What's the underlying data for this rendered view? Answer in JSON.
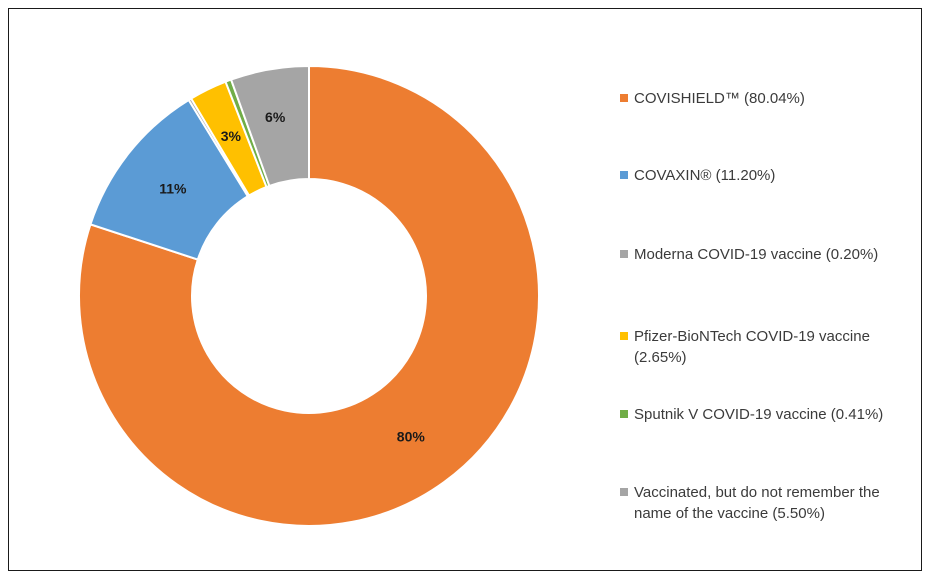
{
  "chart_data": {
    "type": "pie",
    "variant": "donut",
    "start": "top",
    "direction": "clockwise",
    "slices": [
      {
        "label": "COVISHIELD™ (80.04%)",
        "value": 80.04,
        "data_label": "80%",
        "color": "#ED7D31"
      },
      {
        "label": "COVAXIN® (11.20%)",
        "value": 11.2,
        "data_label": "11%",
        "color": "#5B9BD5"
      },
      {
        "label": "Moderna COVID-19 vaccine (0.20%)",
        "value": 0.2,
        "data_label": "",
        "color": "#A5A5A5"
      },
      {
        "label": "Pfizer-BioNTech COVID-19 vaccine (2.65%)",
        "value": 2.65,
        "data_label": "3%",
        "color": "#FFC000"
      },
      {
        "label": "Sputnik V COVID-19 vaccine (0.41%)",
        "value": 0.41,
        "data_label": "",
        "color": "#70AD47"
      },
      {
        "label": "Vaccinated, but do not remember the name of the vaccine (5.50%)",
        "value": 5.5,
        "data_label": "6%",
        "color": "#A5A5A5"
      }
    ],
    "legend_position": "right"
  }
}
